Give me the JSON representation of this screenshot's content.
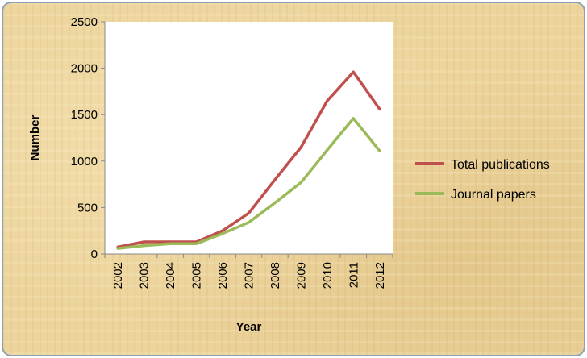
{
  "chart_data": {
    "type": "line",
    "xlabel": "Year",
    "ylabel": "Number",
    "ylim": [
      0,
      2500
    ],
    "yticks": [
      0,
      500,
      1000,
      1500,
      2000,
      2500
    ],
    "categories": [
      "2002",
      "2003",
      "2004",
      "2005",
      "2006",
      "2007",
      "2008",
      "2009",
      "2010",
      "2011",
      "2012"
    ],
    "series": [
      {
        "name": "Total publications",
        "color": "#c0504d",
        "values": [
          75,
          130,
          130,
          130,
          250,
          440,
          800,
          1150,
          1650,
          1960,
          1560
        ]
      },
      {
        "name": "Journal papers",
        "color": "#9bbb59",
        "values": [
          60,
          90,
          110,
          110,
          220,
          340,
          550,
          770,
          1120,
          1460,
          1110
        ]
      }
    ],
    "legend_position": "right",
    "grid": false
  }
}
